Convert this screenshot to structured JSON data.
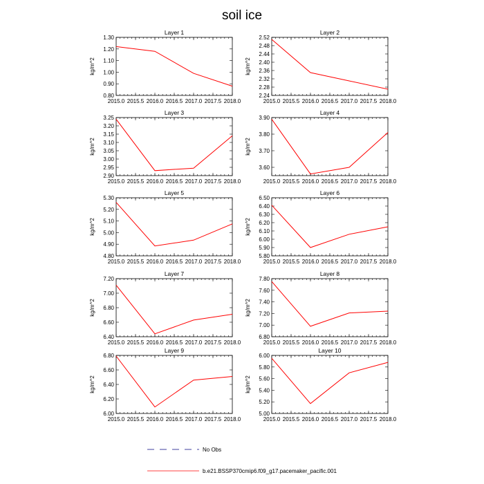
{
  "title": "soil ice",
  "chart_data": {
    "type": "line",
    "x": [
      2015.0,
      2016.0,
      2017.0,
      2018.0
    ],
    "xlim": [
      2015.0,
      2018.0
    ],
    "xticks": [
      "2015.0",
      "2015.5",
      "2016.0",
      "2016.5",
      "2017.0",
      "2017.5",
      "2018.0"
    ],
    "ylabel": "kg/m^2",
    "line_color": "#ff0000",
    "grid": false,
    "panels": [
      {
        "title": "Layer 1",
        "ylim": [
          0.8,
          1.3
        ],
        "yticks": [
          "0.80",
          "0.90",
          "1.00",
          "1.10",
          "1.20",
          "1.30"
        ],
        "values": [
          1.22,
          1.18,
          0.99,
          0.88
        ]
      },
      {
        "title": "Layer 2",
        "ylim": [
          2.24,
          2.52
        ],
        "yticks": [
          "2.24",
          "2.28",
          "2.32",
          "2.36",
          "2.40",
          "2.44",
          "2.48",
          "2.52"
        ],
        "values": [
          2.51,
          2.35,
          2.31,
          2.27
        ]
      },
      {
        "title": "Layer 3",
        "ylim": [
          2.9,
          3.25
        ],
        "yticks": [
          "2.90",
          "2.95",
          "3.00",
          "3.05",
          "3.10",
          "3.15",
          "3.20",
          "3.25"
        ],
        "values": [
          3.24,
          2.93,
          2.945,
          3.14
        ]
      },
      {
        "title": "Layer 4",
        "ylim": [
          3.55,
          3.9
        ],
        "yticks": [
          "3.60",
          "3.70",
          "3.80",
          "3.90"
        ],
        "values": [
          3.89,
          3.56,
          3.6,
          3.81
        ]
      },
      {
        "title": "Layer 5",
        "ylim": [
          4.8,
          5.3
        ],
        "yticks": [
          "4.80",
          "4.90",
          "5.00",
          "5.10",
          "5.20",
          "5.30"
        ],
        "values": [
          5.26,
          4.885,
          4.935,
          5.075
        ]
      },
      {
        "title": "Layer 6",
        "ylim": [
          5.8,
          6.5
        ],
        "yticks": [
          "5.80",
          "5.90",
          "6.00",
          "6.10",
          "6.20",
          "6.30",
          "6.40",
          "6.50"
        ],
        "values": [
          6.41,
          5.9,
          6.06,
          6.15
        ]
      },
      {
        "title": "Layer 7",
        "ylim": [
          6.4,
          7.2
        ],
        "yticks": [
          "6.40",
          "6.60",
          "6.80",
          "7.00",
          "7.20"
        ],
        "values": [
          7.11,
          6.44,
          6.63,
          6.71
        ]
      },
      {
        "title": "Layer 8",
        "ylim": [
          6.8,
          7.8
        ],
        "yticks": [
          "6.80",
          "7.00",
          "7.20",
          "7.40",
          "7.60",
          "7.80"
        ],
        "values": [
          7.75,
          6.98,
          7.21,
          7.24
        ]
      },
      {
        "title": "Layer 9",
        "ylim": [
          6.0,
          6.8
        ],
        "yticks": [
          "6.00",
          "6.20",
          "6.40",
          "6.60",
          "6.80"
        ],
        "values": [
          6.79,
          6.09,
          6.46,
          6.51
        ]
      },
      {
        "title": "Layer 10",
        "ylim": [
          5.0,
          6.0
        ],
        "yticks": [
          "5.00",
          "5.20",
          "5.40",
          "5.60",
          "5.80",
          "6.00"
        ],
        "values": [
          5.95,
          5.17,
          5.7,
          5.88
        ]
      }
    ],
    "legend": [
      {
        "label": "No Obs",
        "style": "dashed",
        "color": "#000080"
      },
      {
        "label": "b.e21.BSSP370cmip6.f09_g17.pacemaker_pacific.001",
        "style": "solid",
        "color": "#ff0000"
      }
    ]
  }
}
